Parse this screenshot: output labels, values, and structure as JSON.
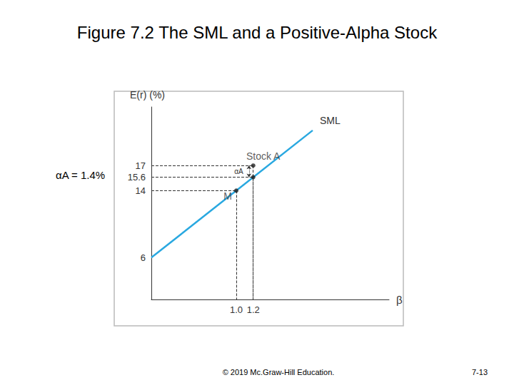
{
  "chart_data": {
    "type": "line",
    "title": "Figure 7.2 The SML and a Positive-Alpha Stock",
    "x_label": "β",
    "y_label": "E(r) (%)",
    "xlim": [
      0,
      2.8
    ],
    "ylim": [
      1,
      24
    ],
    "xticks": [
      {
        "value": 1.0,
        "label": "1.0"
      },
      1.2
    ],
    "yticks": [
      6,
      14,
      15.6,
      17
    ],
    "grid": false,
    "series": [
      {
        "name": "SML",
        "type": "line",
        "color": "#29a8e0",
        "x": [
          0,
          1.9
        ],
        "values": [
          6,
          21.2
        ]
      },
      {
        "type": "scatter",
        "color": "#222222",
        "marker": "circle",
        "x": [
          1.0,
          1.2,
          1.2
        ],
        "values": [
          14,
          17,
          15.6
        ],
        "labels": [
          "M",
          "Stock A",
          null
        ]
      }
    ],
    "annotations": [
      {
        "text": "αA = 1.4%"
      },
      {
        "text": "αA"
      }
    ],
    "footer": [
      "© 2019 Mc.Graw-Hill Education.",
      "7-13"
    ]
  }
}
